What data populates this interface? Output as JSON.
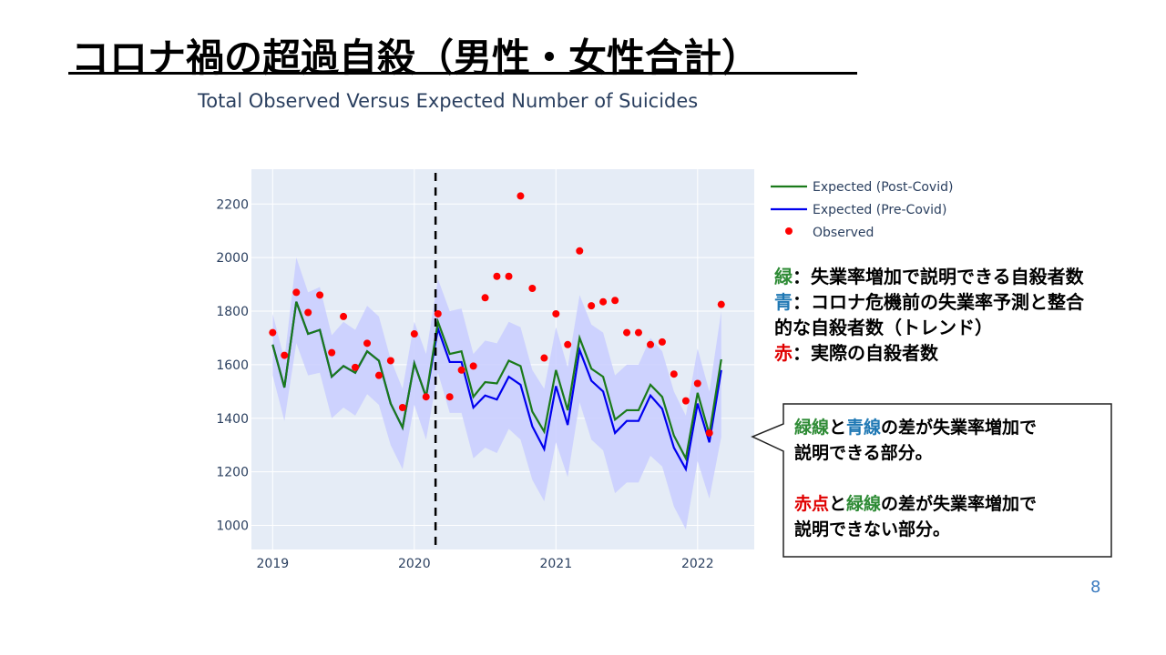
{
  "slide": {
    "title": "コロナ禍の超過自殺（男性・女性合計）",
    "page_number": "8"
  },
  "notes": {
    "green_key": "緑",
    "green_text": "：失業率増加で説明できる自殺者数",
    "blue_key": "青",
    "blue_text_1": "：コロナ危機前の失業率予測と整合",
    "blue_text_2": "的な自殺者数（トレンド）",
    "red_key": "赤",
    "red_text": "：実際の自殺者数"
  },
  "callout": {
    "p1_green": "緑線",
    "p1_mid": "と",
    "p1_blue": "青線",
    "p1_rest": "の差が失業率増加で",
    "p1_line2": "説明できる部分。",
    "p2_red": "赤点",
    "p2_mid": "と",
    "p2_green": "緑線",
    "p2_rest": "の差が失業率増加で",
    "p2_line2": "説明できない部分。"
  },
  "colors": {
    "green": "#1a7a1a",
    "blue": "#0000ee",
    "red": "#ff0000",
    "band": "#c9ceff",
    "plot_bg": "#e5ecf6"
  },
  "chart_data": {
    "type": "line",
    "title": "Total Observed Versus Expected Number of Suicides",
    "x_ticks": [
      2019,
      2020,
      2021,
      2022
    ],
    "x_range": [
      2018.85,
      2022.4
    ],
    "y_ticks": [
      1000,
      1200,
      1400,
      1600,
      1800,
      2000,
      2200
    ],
    "y_range": [
      910,
      2330
    ],
    "covid_marker_x": 2020.15,
    "legend": [
      "Expected (Post-Covid)",
      "Expected (Pre-Covid)",
      "Observed"
    ],
    "x": [
      2019.0,
      2019.083,
      2019.167,
      2019.25,
      2019.333,
      2019.417,
      2019.5,
      2019.583,
      2019.667,
      2019.75,
      2019.833,
      2019.917,
      2020.0,
      2020.083,
      2020.167,
      2020.25,
      2020.333,
      2020.417,
      2020.5,
      2020.583,
      2020.667,
      2020.75,
      2020.833,
      2020.917,
      2021.0,
      2021.083,
      2021.167,
      2021.25,
      2021.333,
      2021.417,
      2021.5,
      2021.583,
      2021.667,
      2021.75,
      2021.833,
      2021.917,
      2022.0,
      2022.083,
      2022.167
    ],
    "series": [
      {
        "name": "Expected (Post-Covid)",
        "values": [
          1675,
          1515,
          1835,
          1715,
          1730,
          1555,
          1595,
          1570,
          1650,
          1615,
          1455,
          1365,
          1605,
          1480,
          1760,
          1640,
          1650,
          1480,
          1535,
          1530,
          1615,
          1595,
          1425,
          1350,
          1580,
          1430,
          1700,
          1585,
          1555,
          1395,
          1430,
          1430,
          1525,
          1480,
          1335,
          1250,
          1495,
          1340,
          1620
        ]
      },
      {
        "name": "Expected (Pre-Covid)",
        "values": [
          1675,
          1515,
          1835,
          1715,
          1730,
          1555,
          1595,
          1570,
          1650,
          1615,
          1455,
          1365,
          1605,
          1480,
          1735,
          1610,
          1610,
          1440,
          1485,
          1470,
          1555,
          1525,
          1370,
          1285,
          1520,
          1375,
          1655,
          1540,
          1500,
          1345,
          1390,
          1390,
          1485,
          1435,
          1290,
          1210,
          1455,
          1310,
          1580
        ]
      },
      {
        "name": "Observed",
        "values": [
          1720,
          1635,
          1870,
          1795,
          1860,
          1645,
          1780,
          1590,
          1680,
          1560,
          1615,
          1440,
          1715,
          1480,
          1790,
          1480,
          1580,
          1595,
          1850,
          1930,
          1930,
          2230,
          1885,
          1625,
          1790,
          1675,
          2025,
          1820,
          1835,
          1840,
          1720,
          1720,
          1675,
          1685,
          1565,
          1465,
          1530,
          1345,
          1825
        ]
      }
    ],
    "band_upper": [
      1790,
      1620,
      2000,
      1870,
      1890,
      1710,
      1760,
      1730,
      1820,
      1780,
      1620,
      1510,
      1760,
      1640,
      1920,
      1800,
      1810,
      1640,
      1690,
      1680,
      1760,
      1740,
      1580,
      1510,
      1740,
      1590,
      1860,
      1750,
      1720,
      1560,
      1600,
      1600,
      1700,
      1650,
      1500,
      1410,
      1660,
      1500,
      1800
    ],
    "band_lower": [
      1560,
      1390,
      1680,
      1560,
      1570,
      1400,
      1440,
      1410,
      1490,
      1450,
      1300,
      1210,
      1450,
      1320,
      1570,
      1420,
      1420,
      1250,
      1290,
      1270,
      1360,
      1320,
      1170,
      1090,
      1310,
      1180,
      1460,
      1320,
      1280,
      1120,
      1160,
      1160,
      1260,
      1220,
      1070,
      985,
      1240,
      1100,
      1330
    ]
  }
}
